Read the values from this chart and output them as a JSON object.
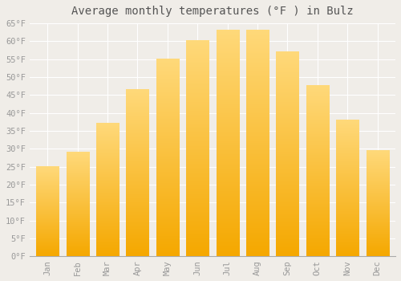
{
  "title": "Average monthly temperatures (°F ) in Bulz",
  "months": [
    "Jan",
    "Feb",
    "Mar",
    "Apr",
    "May",
    "Jun",
    "Jul",
    "Aug",
    "Sep",
    "Oct",
    "Nov",
    "Dec"
  ],
  "values": [
    25,
    29,
    37,
    46.5,
    55,
    60,
    63,
    63,
    57,
    47.5,
    38,
    29.5
  ],
  "bar_color_top": "#FFD97A",
  "bar_color_bottom": "#F5A800",
  "background_color": "#F0EDE8",
  "grid_color": "#FFFFFF",
  "ylim": [
    0,
    65
  ],
  "yticks": [
    0,
    5,
    10,
    15,
    20,
    25,
    30,
    35,
    40,
    45,
    50,
    55,
    60,
    65
  ],
  "ytick_labels": [
    "0°F",
    "5°F",
    "10°F",
    "15°F",
    "20°F",
    "25°F",
    "30°F",
    "35°F",
    "40°F",
    "45°F",
    "50°F",
    "55°F",
    "60°F",
    "65°F"
  ],
  "title_fontsize": 10,
  "tick_fontsize": 7.5,
  "font_family": "monospace",
  "tick_color": "#999999",
  "title_color": "#555555"
}
